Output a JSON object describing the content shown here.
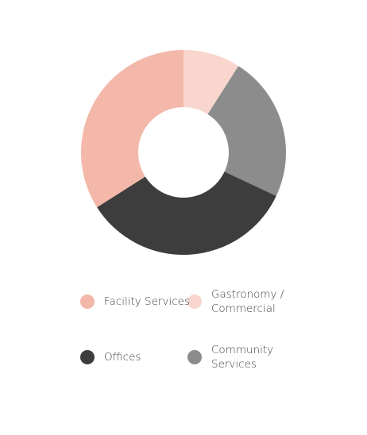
{
  "chart_data": {
    "type": "donut",
    "categories": [
      "Gastronomy / Commercial",
      "Community Services",
      "Offices",
      "Facility Services"
    ],
    "values": [
      9,
      23,
      34,
      34
    ],
    "colors": [
      "#f8d6cd",
      "#8c8c8c",
      "#3d3d3d",
      "#f4b8aa"
    ],
    "legend": "bottom"
  }
}
